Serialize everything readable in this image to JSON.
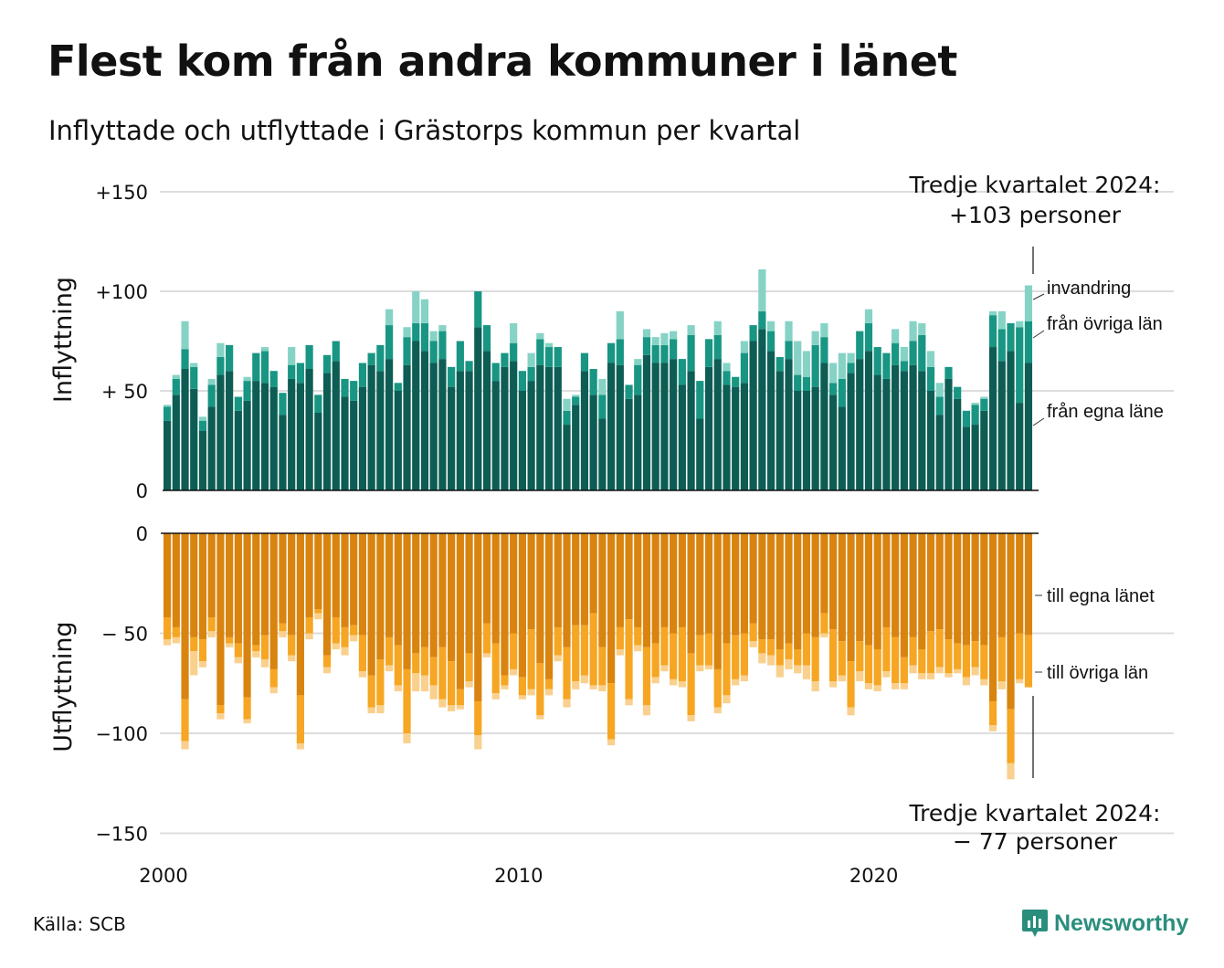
{
  "title": "Flest kom från andra kommuner i länet",
  "subtitle": "Inflyttade och utflyttade i Grästorps kommun per kvartal",
  "source": "Källa: SCB",
  "brand": "Newsworthy",
  "colors": {
    "in_own": "#0d5d54",
    "in_other": "#189683",
    "in_immig": "#86d3c6",
    "out_own": "#d9840f",
    "out_other": "#f6a623",
    "out_emig": "#f9d08e",
    "grid": "#dddddd",
    "brand": "#2a8e7d"
  },
  "chart_data": {
    "type": "bar",
    "stacked": true,
    "xlabel": "",
    "x_ticks": [
      "2000",
      "2010",
      "2020"
    ],
    "x_range": [
      "2000 Q1",
      "2024 Q3"
    ],
    "top_panel": {
      "ylabel": "Inflyttning",
      "y_ticks": [
        "+150",
        "+100",
        "+ 50",
        "0"
      ],
      "y_tick_values": [
        150,
        100,
        50,
        0
      ],
      "ylim": [
        0,
        150
      ],
      "legend": [
        "invandring",
        "från övriga län",
        "från egna läne"
      ],
      "annotation": [
        "Tredje kvartalet 2024:",
        "+103 personer"
      ],
      "series": [
        {
          "name": "från egna läne",
          "values": [
            35,
            48,
            61,
            51,
            30,
            42,
            58,
            60,
            40,
            45,
            55,
            54,
            52,
            38,
            56,
            54,
            61,
            39,
            59,
            65,
            47,
            45,
            52,
            63,
            60,
            66,
            50,
            63,
            75,
            70,
            64,
            66,
            52,
            60,
            60,
            82,
            70,
            55,
            62,
            65,
            50,
            55,
            63,
            62,
            62,
            33,
            43,
            60,
            48,
            36,
            64,
            63,
            46,
            48,
            68,
            64,
            64,
            66,
            53,
            60,
            36,
            62,
            66,
            53,
            52,
            54,
            75,
            81,
            70,
            60,
            66,
            50,
            50,
            52,
            64,
            48,
            42,
            59,
            66,
            70,
            58,
            56,
            63,
            60,
            63,
            60,
            50,
            38,
            56,
            46,
            32,
            33,
            40,
            72,
            65,
            70,
            44,
            64
          ]
        },
        {
          "name": "från övriga län",
          "values": [
            7,
            8,
            10,
            11,
            5,
            11,
            9,
            13,
            7,
            10,
            14,
            16,
            8,
            11,
            7,
            10,
            12,
            9,
            9,
            10,
            9,
            10,
            12,
            6,
            13,
            17,
            4,
            14,
            9,
            14,
            11,
            14,
            10,
            15,
            5,
            18,
            13,
            9,
            7,
            9,
            10,
            7,
            13,
            10,
            10,
            7,
            4,
            9,
            13,
            12,
            10,
            13,
            7,
            15,
            9,
            9,
            9,
            10,
            13,
            18,
            19,
            14,
            12,
            7,
            5,
            15,
            8,
            9,
            10,
            7,
            9,
            8,
            7,
            21,
            13,
            6,
            14,
            5,
            14,
            14,
            14,
            13,
            11,
            5,
            12,
            18,
            12,
            9,
            6,
            6,
            8,
            10,
            6,
            16,
            16,
            14,
            38,
            21
          ]
        },
        {
          "name": "invandring",
          "values": [
            1,
            2,
            14,
            2,
            2,
            3,
            7,
            0,
            0,
            2,
            0,
            2,
            0,
            0,
            9,
            0,
            0,
            0,
            0,
            0,
            0,
            0,
            0,
            0,
            0,
            8,
            0,
            5,
            16,
            12,
            5,
            3,
            0,
            0,
            0,
            0,
            0,
            0,
            0,
            10,
            0,
            7,
            3,
            2,
            0,
            6,
            1,
            0,
            0,
            8,
            0,
            14,
            0,
            3,
            4,
            4,
            6,
            4,
            0,
            5,
            0,
            0,
            7,
            4,
            0,
            6,
            0,
            21,
            5,
            0,
            10,
            17,
            13,
            7,
            7,
            10,
            13,
            5,
            0,
            7,
            0,
            0,
            7,
            7,
            10,
            6,
            8,
            7,
            0,
            0,
            0,
            1,
            1,
            2,
            9,
            0,
            3,
            18
          ]
        }
      ]
    },
    "bottom_panel": {
      "ylabel": "Utflyttning",
      "y_ticks": [
        "0",
        "− 50",
        "−100",
        "−150"
      ],
      "y_tick_values": [
        0,
        -50,
        -100,
        -150
      ],
      "ylim": [
        -150,
        0
      ],
      "legend": [
        "till egna länet",
        "till övriga län"
      ],
      "annotation": [
        "Tredje kvartalet 2024:",
        "− 77 personer"
      ],
      "series": [
        {
          "name": "till egna länet",
          "values": [
            -42,
            -47,
            -83,
            -52,
            -53,
            -42,
            -86,
            -52,
            -55,
            -82,
            -56,
            -51,
            -68,
            -45,
            -51,
            -81,
            -42,
            -38,
            -61,
            -42,
            -47,
            -46,
            -51,
            -71,
            -63,
            -52,
            -56,
            -68,
            -60,
            -57,
            -62,
            -57,
            -64,
            -78,
            -60,
            -84,
            -45,
            -55,
            -71,
            -50,
            -72,
            -48,
            -65,
            -73,
            -47,
            -57,
            -46,
            -46,
            -40,
            -57,
            -75,
            -47,
            -43,
            -47,
            -57,
            -55,
            -47,
            -50,
            -47,
            -60,
            -51,
            -50,
            -68,
            -55,
            -51,
            -50,
            -45,
            -53,
            -53,
            -58,
            -55,
            -58,
            -50,
            -52,
            -40,
            -48,
            -54,
            -64,
            -54,
            -56,
            -58,
            -47,
            -52,
            -62,
            -52,
            -58,
            -49,
            -48,
            -53,
            -55,
            -56,
            -54,
            -56,
            -84,
            -52,
            -88,
            -50,
            -51
          ]
        },
        {
          "name": "till övriga län",
          "values": [
            -11,
            -5,
            -21,
            -7,
            -11,
            -7,
            -4,
            -3,
            -7,
            -11,
            -3,
            -12,
            -9,
            -4,
            -10,
            -24,
            -8,
            -2,
            -6,
            -13,
            -10,
            -5,
            -18,
            -16,
            -23,
            -14,
            -20,
            -32,
            -10,
            -14,
            -14,
            -26,
            -22,
            -8,
            -14,
            -17,
            -15,
            -25,
            -5,
            -18,
            -9,
            -30,
            -26,
            -5,
            -14,
            -26,
            -28,
            -25,
            -36,
            -19,
            -28,
            -11,
            -40,
            -9,
            -29,
            -17,
            -19,
            -23,
            -27,
            -31,
            -15,
            -16,
            -19,
            -26,
            -22,
            -21,
            -9,
            -7,
            -8,
            -8,
            -8,
            -8,
            -16,
            -22,
            -10,
            -26,
            -17,
            -23,
            -15,
            -19,
            -18,
            -22,
            -23,
            -13,
            -14,
            -12,
            -21,
            -19,
            -17,
            -13,
            -16,
            -13,
            -17,
            -12,
            -22,
            -27,
            -23,
            -26
          ]
        },
        {
          "name": "",
          "values": [
            -3,
            -3,
            -4,
            -12,
            -3,
            -3,
            -3,
            -2,
            -3,
            -2,
            -3,
            -4,
            -3,
            -3,
            -3,
            -3,
            -3,
            -3,
            -3,
            -3,
            -4,
            -3,
            -3,
            -3,
            -4,
            -3,
            -3,
            -5,
            -9,
            -8,
            -7,
            -4,
            -3,
            -2,
            -3,
            -7,
            -2,
            -3,
            -2,
            -3,
            -2,
            -3,
            -2,
            -3,
            -3,
            -4,
            -4,
            -4,
            -2,
            -3,
            -3,
            -3,
            -3,
            -3,
            -5,
            -3,
            -3,
            -3,
            -3,
            -3,
            -3,
            -2,
            -3,
            -4,
            -3,
            -3,
            -3,
            -5,
            -5,
            -6,
            -5,
            -4,
            -7,
            -5,
            -2,
            -3,
            -3,
            -4,
            -5,
            -3,
            -3,
            -3,
            -3,
            -3,
            -4,
            -3,
            -3,
            -3,
            -2,
            -2,
            -4,
            -4,
            -3,
            -3,
            -4,
            -8,
            -2,
            0
          ]
        }
      ]
    }
  }
}
